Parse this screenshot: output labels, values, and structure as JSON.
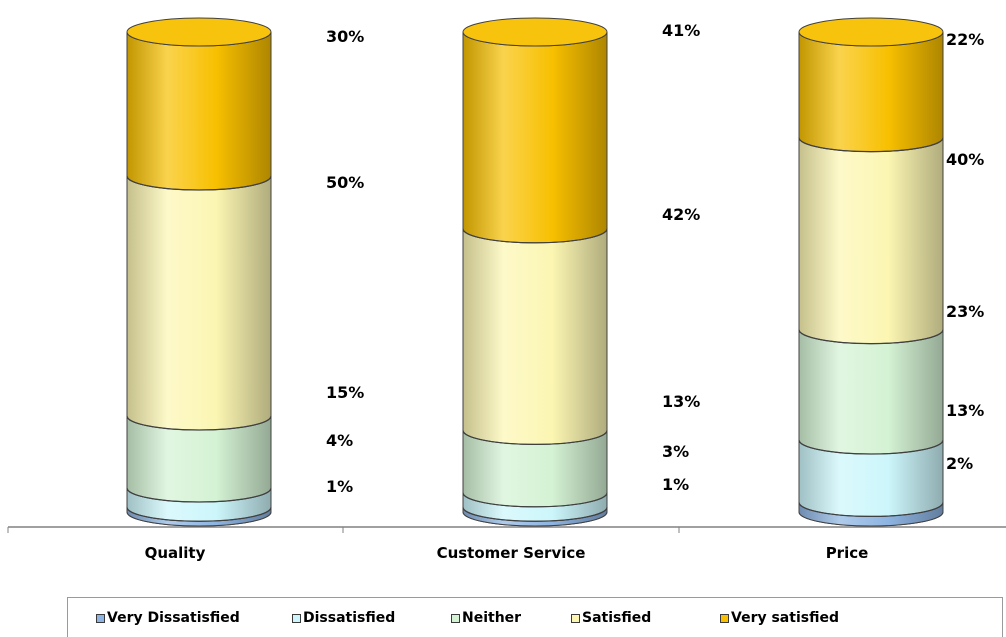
{
  "chart_data": {
    "type": "bar",
    "stacked": true,
    "style": "3d-cylinder",
    "categories": [
      "Quality",
      "Customer Service",
      "Price"
    ],
    "series": [
      {
        "name": "Very Dissatisfied",
        "color": "#8db4e2",
        "values": [
          1,
          1,
          2
        ]
      },
      {
        "name": "Dissatisfied",
        "color": "#ccf6fb",
        "values": [
          4,
          3,
          13
        ]
      },
      {
        "name": "Neither",
        "color": "#d4f2d4",
        "values": [
          15,
          13,
          23
        ]
      },
      {
        "name": "Satisfied",
        "color": "#fcf6b2",
        "values": [
          50,
          42,
          40
        ]
      },
      {
        "name": "Very satisfied",
        "color": "#f8c000",
        "values": [
          30,
          41,
          22
        ]
      }
    ],
    "data_labels": [
      [
        "1%",
        "4%",
        "15%",
        "50%",
        "30%"
      ],
      [
        "1%",
        "3%",
        "13%",
        "42%",
        "41%"
      ],
      [
        "2%",
        "13%",
        "23%",
        "40%",
        "22%"
      ]
    ],
    "legend_position": "bottom",
    "grid": false
  },
  "legend": {
    "items": [
      {
        "label": "Very Dissatisfied",
        "color": "#8db4e2"
      },
      {
        "label": "Dissatisfied",
        "color": "#ccf6fb"
      },
      {
        "label": "Neither",
        "color": "#d4f2d4"
      },
      {
        "label": "Satisfied",
        "color": "#fcf6b2"
      },
      {
        "label": "Very satisfied",
        "color": "#f8c000"
      }
    ]
  }
}
